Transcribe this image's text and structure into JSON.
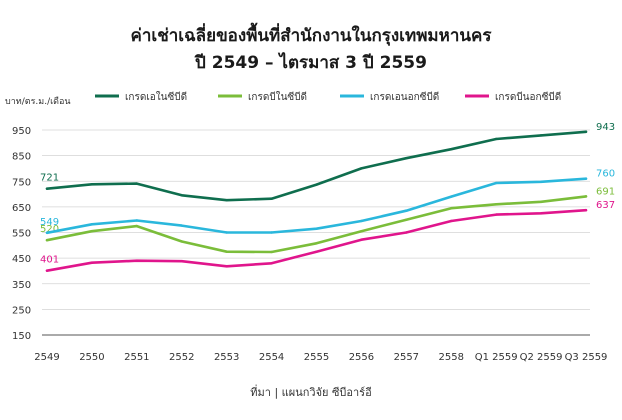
{
  "title_line1": "ค่าเช่าเฉลี่ยของพื้นที่สำนักงานในกรุงเทพมหานคร",
  "title_line2": "ปี 2549 – ไตรมาส 3 ปี 2559",
  "source": "ที่มา | แผนกวิจัย ซีบีอาร์อี",
  "chart_data": {
    "type": "line",
    "ylabel": "บาท/ตร.ม./เดือน",
    "ylim": [
      150,
      1000
    ],
    "yticks": [
      150,
      250,
      350,
      450,
      550,
      650,
      750,
      850,
      950
    ],
    "grid": "horizontal",
    "legend_position": "top",
    "categories": [
      "2549",
      "2550",
      "2551",
      "2552",
      "2553",
      "2554",
      "2555",
      "2556",
      "2557",
      "2558",
      "Q1 2559",
      "Q2 2559",
      "Q3 2559"
    ],
    "series": [
      {
        "name": "เกรดเอในซีบีดี",
        "color": "#0f6e4e",
        "values": [
          721,
          738,
          741,
          695,
          676,
          682,
          737,
          800,
          840,
          875,
          915,
          929,
          943
        ],
        "start_label": "721",
        "end_label": "943"
      },
      {
        "name": "เกรดบีในซีบีดี",
        "color": "#7bbd3a",
        "values": [
          520,
          555,
          575,
          515,
          475,
          474,
          508,
          555,
          600,
          645,
          660,
          670,
          691
        ],
        "start_label": "520",
        "end_label": "691"
      },
      {
        "name": "เกรดเอนอกซีบีดี",
        "color": "#2ab7dc",
        "values": [
          549,
          582,
          597,
          577,
          550,
          550,
          565,
          595,
          635,
          690,
          743,
          748,
          760
        ],
        "start_label": "549",
        "end_label": "760"
      },
      {
        "name": "เกรดบีนอกซีบีดี",
        "color": "#e0158c",
        "values": [
          401,
          432,
          440,
          438,
          418,
          430,
          475,
          522,
          550,
          595,
          620,
          625,
          637
        ],
        "start_label": "401",
        "end_label": "637"
      }
    ]
  }
}
